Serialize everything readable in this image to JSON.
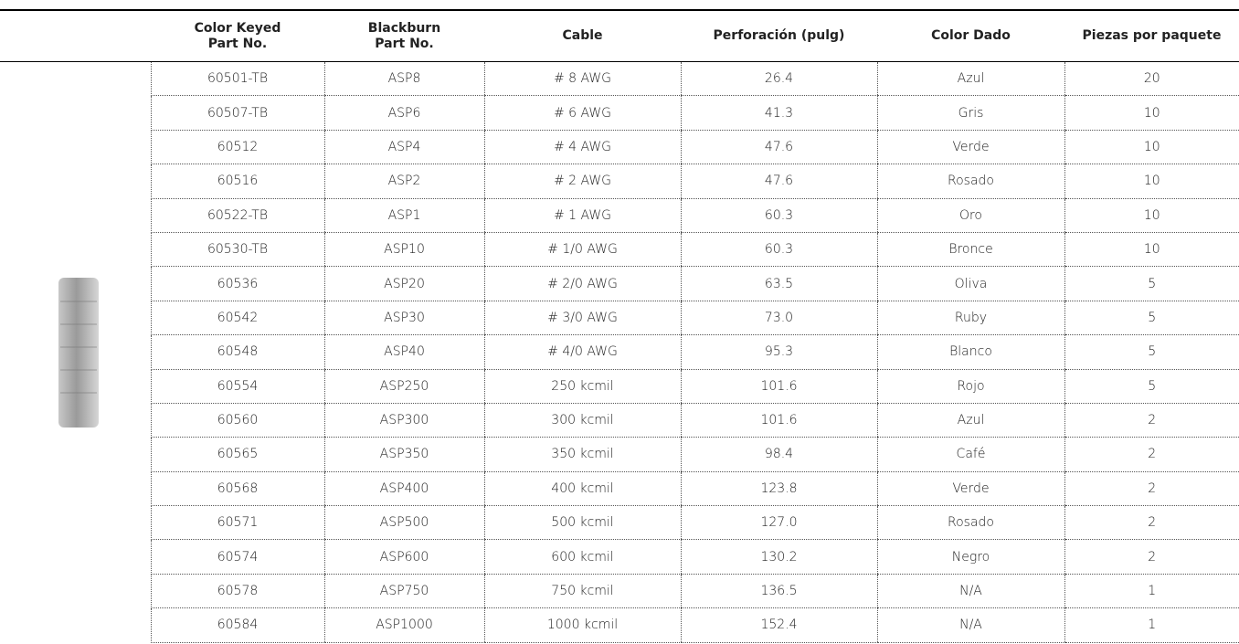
{
  "table": {
    "headers": [
      "Color Keyed\nPart No.",
      "Blackburn\nPart No.",
      "Cable",
      "Perforación (pulg)",
      "Color Dado",
      "Piezas por paquete"
    ],
    "rows": [
      [
        "60501-TB",
        "ASP8",
        "# 8 AWG",
        "26.4",
        "Azul",
        "20"
      ],
      [
        "60507-TB",
        "ASP6",
        "# 6 AWG",
        "41.3",
        "Gris",
        "10"
      ],
      [
        "60512",
        "ASP4",
        "# 4 AWG",
        "47.6",
        "Verde",
        "10"
      ],
      [
        "60516",
        "ASP2",
        "# 2 AWG",
        "47.6",
        "Rosado",
        "10"
      ],
      [
        "60522-TB",
        "ASP1",
        "# 1 AWG",
        "60.3",
        "Oro",
        "10"
      ],
      [
        "60530-TB",
        "ASP10",
        "# 1/0 AWG",
        "60.3",
        "Bronce",
        "10"
      ],
      [
        "60536",
        "ASP20",
        "# 2/0 AWG",
        "63.5",
        "Oliva",
        "5"
      ],
      [
        "60542",
        "ASP30",
        "# 3/0 AWG",
        "73.0",
        "Ruby",
        "5"
      ],
      [
        "60548",
        "ASP40",
        "# 4/0 AWG",
        "95.3",
        "Blanco",
        "5"
      ],
      [
        "60554",
        "ASP250",
        "250 kcmil",
        "101.6",
        "Rojo",
        "5"
      ],
      [
        "60560",
        "ASP300",
        "300 kcmil",
        "101.6",
        "Azul",
        "2"
      ],
      [
        "60565",
        "ASP350",
        "350 kcmil",
        "98.4",
        "Café",
        "2"
      ],
      [
        "60568",
        "ASP400",
        "400 kcmil",
        "123.8",
        "Verde",
        "2"
      ],
      [
        "60571",
        "ASP500",
        "500 kcmil",
        "127.0",
        "Rosado",
        "2"
      ],
      [
        "60574",
        "ASP600",
        "600 kcmil",
        "130.2",
        "Negro",
        "2"
      ],
      [
        "60578",
        "ASP750",
        "750 kcmil",
        "136.5",
        "N/A",
        "1"
      ],
      [
        "60584",
        "ASP1000",
        "1000 kcmil",
        "152.4",
        "N/A",
        "1"
      ]
    ]
  }
}
